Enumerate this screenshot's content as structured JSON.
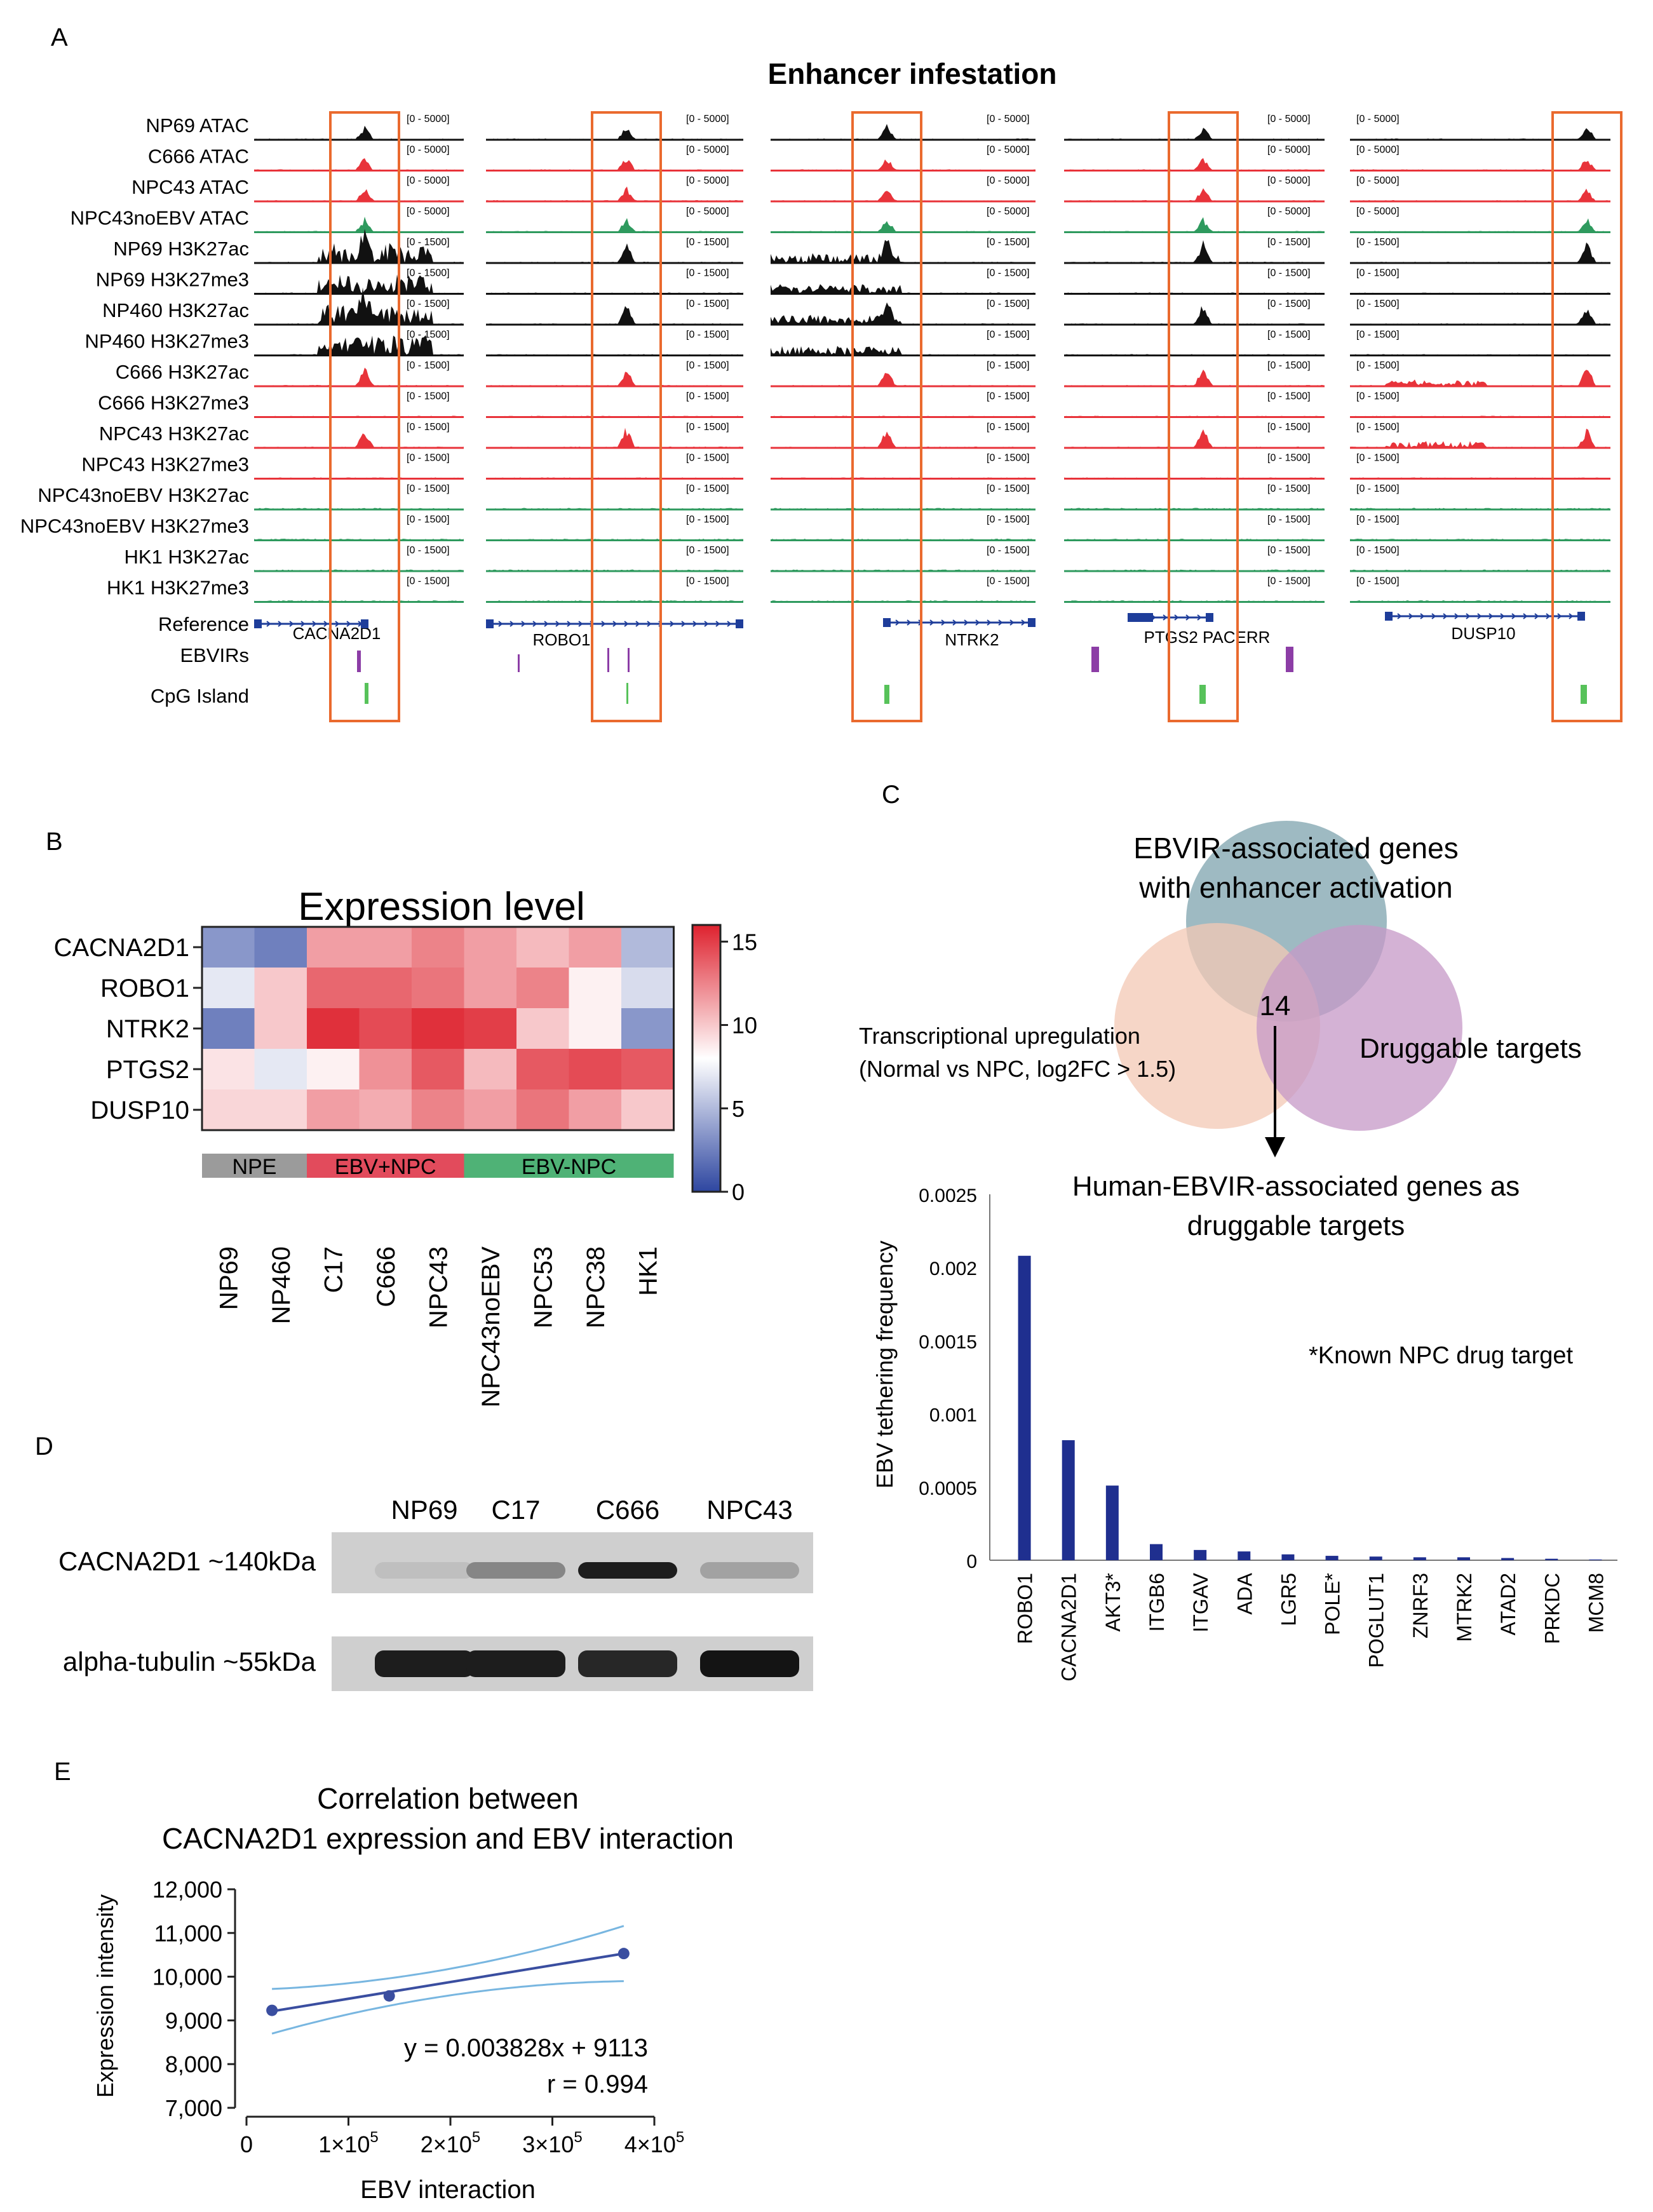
{
  "panelA": {
    "letter": "A",
    "title": "Enhancer infestation",
    "tracks": [
      {
        "label": "NP69 ATAC",
        "range": "[0 - 5000]",
        "color": "#111111",
        "kind": "atac"
      },
      {
        "label": "C666 ATAC",
        "range": "[0 - 5000]",
        "color": "#e8333a",
        "kind": "atac"
      },
      {
        "label": "NPC43 ATAC",
        "range": "[0 - 5000]",
        "color": "#e8333a",
        "kind": "atac"
      },
      {
        "label": "NPC43noEBV ATAC",
        "range": "[0 - 5000]",
        "color": "#2e9a5e",
        "kind": "atac"
      },
      {
        "label": "NP69 H3K27ac",
        "range": "[0 - 1500]",
        "color": "#111111",
        "kind": "ac"
      },
      {
        "label": "NP69 H3K27me3",
        "range": "[0 - 1500]",
        "color": "#111111",
        "kind": "me3"
      },
      {
        "label": "NP460 H3K27ac",
        "range": "[0 - 1500]",
        "color": "#111111",
        "kind": "ac"
      },
      {
        "label": "NP460 H3K27me3",
        "range": "[0 - 1500]",
        "color": "#111111",
        "kind": "me3"
      },
      {
        "label": "C666 H3K27ac",
        "range": "[0 - 1500]",
        "color": "#e8333a",
        "kind": "ac"
      },
      {
        "label": "C666 H3K27me3",
        "range": "[0 - 1500]",
        "color": "#e8333a",
        "kind": "me3"
      },
      {
        "label": "NPC43 H3K27ac",
        "range": "[0 - 1500]",
        "color": "#e8333a",
        "kind": "ac"
      },
      {
        "label": "NPC43 H3K27me3",
        "range": "[0 - 1500]",
        "color": "#e8333a",
        "kind": "me3"
      },
      {
        "label": "NPC43noEBV H3K27ac",
        "range": "[0 - 1500]",
        "color": "#2e9a5e",
        "kind": "ac"
      },
      {
        "label": "NPC43noEBV H3K27me3",
        "range": "[0 - 1500]",
        "color": "#2e9a5e",
        "kind": "me3"
      },
      {
        "label": "HK1 H3K27ac",
        "range": "[0 - 1500]",
        "color": "#2e9a5e",
        "kind": "ac"
      },
      {
        "label": "HK1 H3K27me3",
        "range": "[0 - 1500]",
        "color": "#2e9a5e",
        "kind": "me3"
      }
    ],
    "reference_label": "Reference",
    "ebvirs_label": "EBVIRs",
    "cpg_label": "CpG Island",
    "loci": [
      "CACNA2D1",
      "ROBO1",
      "NTRK2",
      "PTGS2 PACERR",
      "DUSP10"
    ]
  },
  "panelB": {
    "letter": "B",
    "title": "Expression level",
    "genes": [
      "CACNA2D1",
      "ROBO1",
      "NTRK2",
      "PTGS2",
      "DUSP10"
    ],
    "samples": [
      "NP69",
      "NP460",
      "C17",
      "C666",
      "NPC43",
      "NPC43noEBV",
      "NPC53",
      "NPC38",
      "HK1"
    ],
    "values": [
      [
        3.5,
        2.5,
        11.5,
        11.5,
        12.5,
        11.5,
        10.5,
        11.5,
        5.0
      ],
      [
        7.0,
        10.0,
        13.5,
        13.5,
        13.0,
        11.5,
        12.5,
        8.5,
        6.5
      ],
      [
        2.5,
        10.0,
        15.5,
        14.5,
        15.5,
        15.0,
        10.0,
        8.5,
        3.5
      ],
      [
        9.0,
        7.0,
        8.5,
        12.0,
        14.0,
        10.5,
        14.0,
        14.5,
        14.0
      ],
      [
        9.5,
        9.5,
        11.5,
        11.0,
        12.5,
        11.5,
        13.0,
        11.5,
        10.0
      ]
    ],
    "colorbar_ticks": [
      "15",
      "10",
      "5",
      "0"
    ],
    "groups": [
      {
        "label": "NPE",
        "color": "#9b9b9b"
      },
      {
        "label": "EBV+NPC",
        "color": "#e24b5c"
      },
      {
        "label": "EBV-NPC",
        "color": "#4fb276"
      }
    ]
  },
  "panelC": {
    "letter": "C",
    "venn": {
      "top_label_1": "EBVIR-associated genes",
      "top_label_2": "with enhancer activation",
      "left_label_1": "Transcriptional upregulation",
      "left_label_2": "(Normal vs NPC, log2FC > 1.5)",
      "right_label": "Druggable targets",
      "center_count": "14",
      "colors": {
        "top": "#7da3ad",
        "left": "#f3c8b4",
        "right": "#c598c7"
      }
    },
    "chart_data": {
      "type": "bar",
      "title": "Human-EBVIR-associated genes as druggable targets",
      "title_line1": "Human-EBVIR-associated genes as",
      "title_line2": "druggable targets",
      "ylabel": "EBV tethering frequency",
      "ylim": [
        0,
        0.0025
      ],
      "yticks": [
        "0",
        "0.0005",
        "0.001",
        "0.0015",
        "0.002",
        "0.0025"
      ],
      "categories": [
        "ROBO1",
        "CACNA2D1",
        "AKT3*",
        "ITGB6",
        "ITGAV",
        "ADA",
        "LGR5",
        "POLE*",
        "POGLUT1",
        "ZNRF3",
        "MTRK2",
        "ATAD2",
        "PRKDC",
        "MCM8"
      ],
      "values": [
        0.00208,
        0.00082,
        0.00051,
        0.00011,
        7e-05,
        6e-05,
        4e-05,
        3e-05,
        2.5e-05,
        2e-05,
        2e-05,
        1.5e-05,
        1e-05,
        5e-06
      ],
      "annotation": "*Known NPC drug target",
      "color": "#1f2f8f"
    }
  },
  "panelD": {
    "letter": "D",
    "lanes": [
      "NP69",
      "C17",
      "C666",
      "NPC43"
    ],
    "rows": [
      {
        "label": "CACNA2D1 ~140kDa",
        "intensities": [
          0.05,
          0.35,
          0.9,
          0.2
        ]
      },
      {
        "label": "alpha-tubulin ~55kDa",
        "intensities": [
          0.9,
          0.9,
          0.85,
          0.95
        ]
      }
    ]
  },
  "panelE": {
    "letter": "E",
    "chart_data": {
      "type": "scatter",
      "title_line1": "Correlation between",
      "title_line2": "CACNA2D1 expression and EBV interaction",
      "xlabel": "EBV interaction",
      "ylabel": "Expression intensity",
      "xlim": [
        0,
        400000
      ],
      "ylim": [
        7000,
        12000
      ],
      "yticks": [
        "7,000",
        "8,000",
        "9,000",
        "10,000",
        "11,000",
        "12,000"
      ],
      "xticks": [
        "0",
        "1×10",
        "2×10",
        "3×10",
        "4×10"
      ],
      "xtick_exp": "5",
      "points": [
        [
          25000,
          9230
        ],
        [
          140000,
          9560
        ],
        [
          370000,
          10530
        ]
      ],
      "fit": {
        "slope": 0.003828,
        "intercept": 9113
      },
      "equation": "y = 0.003828x + 9113",
      "r_label": "r = 0.994",
      "line_color": "#3a4ea0",
      "ci_color": "#78b6e0"
    }
  }
}
